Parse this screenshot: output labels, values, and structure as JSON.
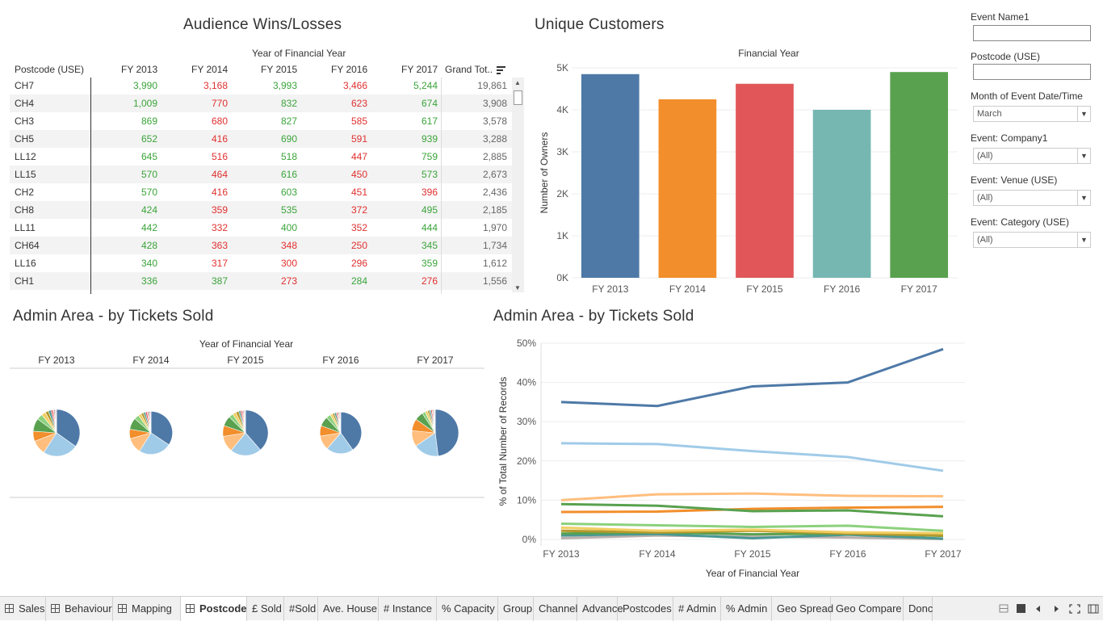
{
  "wins_losses": {
    "title": "Audience Wins/Losses",
    "group_header": "Year of Financial Year",
    "row_header": "Postcode (USE)",
    "columns": [
      "FY 2013",
      "FY 2014",
      "FY 2015",
      "FY 2016",
      "FY 2017",
      "Grand Tot.."
    ],
    "rows": [
      {
        "code": "CH7",
        "v": [
          "3,990",
          "3,168",
          "3,993",
          "3,466",
          "5,244"
        ],
        "s": [
          "pos",
          "neg",
          "pos",
          "neg",
          "pos"
        ],
        "total": "19,861"
      },
      {
        "code": "CH4",
        "v": [
          "1,009",
          "770",
          "832",
          "623",
          "674"
        ],
        "s": [
          "pos",
          "neg",
          "pos",
          "neg",
          "pos"
        ],
        "total": "3,908"
      },
      {
        "code": "CH3",
        "v": [
          "869",
          "680",
          "827",
          "585",
          "617"
        ],
        "s": [
          "pos",
          "neg",
          "pos",
          "neg",
          "pos"
        ],
        "total": "3,578"
      },
      {
        "code": "CH5",
        "v": [
          "652",
          "416",
          "690",
          "591",
          "939"
        ],
        "s": [
          "pos",
          "neg",
          "pos",
          "neg",
          "pos"
        ],
        "total": "3,288"
      },
      {
        "code": "LL12",
        "v": [
          "645",
          "516",
          "518",
          "447",
          "759"
        ],
        "s": [
          "pos",
          "neg",
          "pos",
          "neg",
          "pos"
        ],
        "total": "2,885"
      },
      {
        "code": "LL15",
        "v": [
          "570",
          "464",
          "616",
          "450",
          "573"
        ],
        "s": [
          "pos",
          "neg",
          "pos",
          "neg",
          "pos"
        ],
        "total": "2,673"
      },
      {
        "code": "CH2",
        "v": [
          "570",
          "416",
          "603",
          "451",
          "396"
        ],
        "s": [
          "pos",
          "neg",
          "pos",
          "neg",
          "neg"
        ],
        "total": "2,436"
      },
      {
        "code": "CH8",
        "v": [
          "424",
          "359",
          "535",
          "372",
          "495"
        ],
        "s": [
          "pos",
          "neg",
          "pos",
          "neg",
          "pos"
        ],
        "total": "2,185"
      },
      {
        "code": "LL11",
        "v": [
          "442",
          "332",
          "400",
          "352",
          "444"
        ],
        "s": [
          "pos",
          "neg",
          "pos",
          "neg",
          "pos"
        ],
        "total": "1,970"
      },
      {
        "code": "CH64",
        "v": [
          "428",
          "363",
          "348",
          "250",
          "345"
        ],
        "s": [
          "pos",
          "neg",
          "neg",
          "neg",
          "pos"
        ],
        "total": "1,734"
      },
      {
        "code": "LL16",
        "v": [
          "340",
          "317",
          "300",
          "296",
          "359"
        ],
        "s": [
          "pos",
          "neg",
          "neg",
          "neg",
          "pos"
        ],
        "total": "1,612"
      },
      {
        "code": "CH1",
        "v": [
          "336",
          "387",
          "273",
          "284",
          "276"
        ],
        "s": [
          "pos",
          "pos",
          "neg",
          "pos",
          "neg"
        ],
        "total": "1,556"
      }
    ]
  },
  "colors": {
    "blue": "#4e79a7",
    "orange": "#f28e2b",
    "red": "#e15759",
    "teal": "#76b7b2",
    "green": "#59a14f",
    "lightblue": "#a0cbe8",
    "lightorange": "#ffbe7d",
    "lightgreen": "#8cd17d",
    "yellow": "#f1ce63",
    "gray": "#bab0ac",
    "positive_text": "#3aa43a",
    "negative_text": "#e0302f"
  },
  "unique_customers": {
    "title": "Unique Customers",
    "chart_data": {
      "type": "bar",
      "title": "",
      "xlabel": "Financial Year",
      "ylabel": "Number of Owners",
      "categories": [
        "FY 2013",
        "FY 2014",
        "FY 2015",
        "FY 2016",
        "FY 2017"
      ],
      "values": [
        4850,
        4250,
        4620,
        4000,
        4900
      ],
      "colors": [
        "#4e79a7",
        "#f28e2b",
        "#e15759",
        "#76b7b2",
        "#59a14f"
      ],
      "yticks": [
        "0K",
        "1K",
        "2K",
        "3K",
        "4K",
        "5K"
      ],
      "ylim": [
        0,
        5000
      ]
    }
  },
  "admin_pies": {
    "title": "Admin Area - by Tickets Sold",
    "group_header": "Year of Financial Year",
    "chart_data": {
      "type": "pie",
      "years": [
        "FY 2013",
        "FY 2014",
        "FY 2015",
        "FY 2016",
        "FY 2017"
      ],
      "sizes": [
        1.0,
        0.92,
        0.97,
        0.89,
        1.0
      ],
      "slices": [
        {
          "color": "#4e79a7",
          "values": [
            35,
            34,
            39,
            40,
            48
          ]
        },
        {
          "color": "#a0cbe8",
          "values": [
            24.5,
            24.3,
            22.5,
            21,
            17.5
          ]
        },
        {
          "color": "#ffbe7d",
          "values": [
            10,
            11.5,
            11.7,
            11.1,
            11
          ]
        },
        {
          "color": "#f28e2b",
          "values": [
            7,
            7.1,
            7.8,
            8.1,
            8.3
          ]
        },
        {
          "color": "#59a14f",
          "values": [
            9,
            8.6,
            7.2,
            7.4,
            5.9
          ]
        },
        {
          "color": "#8cd17d",
          "values": [
            4,
            3.6,
            3.2,
            3.5,
            2.2
          ]
        },
        {
          "color": "#f1ce63",
          "values": [
            3,
            2.2,
            2.5,
            1.8,
            1.6
          ]
        },
        {
          "color": "#b6992d",
          "values": [
            2.3,
            1.9,
            2.1,
            1.6,
            1.3
          ]
        },
        {
          "color": "#499894",
          "values": [
            1.8,
            1.5,
            1.3,
            1.4,
            1.1
          ]
        },
        {
          "color": "#e15759",
          "values": [
            1.2,
            1.3,
            1.1,
            1.0,
            0.9
          ]
        },
        {
          "color": "#ff9d9a",
          "values": [
            0.9,
            1.0,
            0.9,
            0.8,
            0.7
          ]
        },
        {
          "color": "#79706e",
          "values": [
            0.7,
            0.8,
            0.6,
            0.7,
            0.6
          ]
        },
        {
          "color": "#bab0ac",
          "values": [
            0.6,
            0.6,
            0.7,
            0.6,
            0.5
          ]
        },
        {
          "color": "#d37295",
          "values": [
            0.5,
            0.5,
            0.4,
            0.5,
            0.4
          ]
        }
      ]
    }
  },
  "admin_lines": {
    "title": "Admin Area - by Tickets Sold",
    "chart_data": {
      "type": "line",
      "xlabel": "Year of Financial Year",
      "ylabel": "% of Total Number of Records",
      "x": [
        "FY 2013",
        "FY 2014",
        "FY 2015",
        "FY 2016",
        "FY 2017"
      ],
      "yticks": [
        "0%",
        "10%",
        "20%",
        "30%",
        "40%",
        "50%"
      ],
      "ylim": [
        0,
        50
      ],
      "series": [
        {
          "color": "#4e79a7",
          "values": [
            35,
            34,
            39,
            40,
            48.5
          ]
        },
        {
          "color": "#a0cbe8",
          "values": [
            24.5,
            24.3,
            22.5,
            21,
            17.5
          ]
        },
        {
          "color": "#ffbe7d",
          "values": [
            10,
            11.5,
            11.7,
            11.1,
            11
          ]
        },
        {
          "color": "#59a14f",
          "values": [
            9,
            8.6,
            7.2,
            7.4,
            5.9
          ]
        },
        {
          "color": "#f28e2b",
          "values": [
            7,
            7.1,
            7.8,
            8.1,
            8.3
          ]
        },
        {
          "color": "#8cd17d",
          "values": [
            4,
            3.6,
            3.2,
            3.5,
            2.2
          ]
        },
        {
          "color": "#f1ce63",
          "values": [
            3,
            2.2,
            2.5,
            1.8,
            1.6
          ]
        },
        {
          "color": "#b6992d",
          "values": [
            2.2,
            1.8,
            2.2,
            1.5,
            1.0
          ]
        },
        {
          "color": "#59a14f",
          "values": [
            1.5,
            1.8,
            1.3,
            1.5,
            0.9
          ]
        },
        {
          "color": "#499894",
          "values": [
            1.0,
            1.4,
            0.3,
            1.2,
            0.2
          ]
        },
        {
          "color": "#bab0ac",
          "values": [
            0.3,
            1.0,
            0.7,
            0.5,
            0.1
          ]
        }
      ]
    }
  },
  "filters": {
    "event_name": {
      "label": "Event Name1",
      "value": ""
    },
    "postcode": {
      "label": "Postcode (USE)",
      "value": ""
    },
    "month": {
      "label": "Month of Event Date/Time",
      "value": "March"
    },
    "company": {
      "label": "Event: Company1",
      "value": "(All)"
    },
    "venue": {
      "label": "Event: Venue (USE)",
      "value": "(All)"
    },
    "category": {
      "label": "Event: Category (USE)",
      "value": "(All)"
    }
  },
  "tabs": [
    {
      "label": "Sales",
      "icon": true
    },
    {
      "label": "Behaviour",
      "icon": true
    },
    {
      "label": "Mapping",
      "icon": true
    },
    {
      "label": "Postcode",
      "icon": true,
      "active": true
    },
    {
      "label": "£ Sold"
    },
    {
      "label": "#Sold"
    },
    {
      "label": "Ave. House"
    },
    {
      "label": "# Instance"
    },
    {
      "label": "% Capacity"
    },
    {
      "label": "Group"
    },
    {
      "label": "Channel"
    },
    {
      "label": "Advance"
    },
    {
      "label": "Postcodes"
    },
    {
      "label": "# Admin"
    },
    {
      "label": "% Admin"
    },
    {
      "label": "Geo Spread"
    },
    {
      "label": "Geo Compare"
    },
    {
      "label": "Donc"
    }
  ],
  "tab_controls": [
    "grid-view-icon",
    "sheet-view-icon",
    "prev-tab-icon",
    "next-tab-icon",
    "fullscreen-icon",
    "filmstrip-icon"
  ]
}
